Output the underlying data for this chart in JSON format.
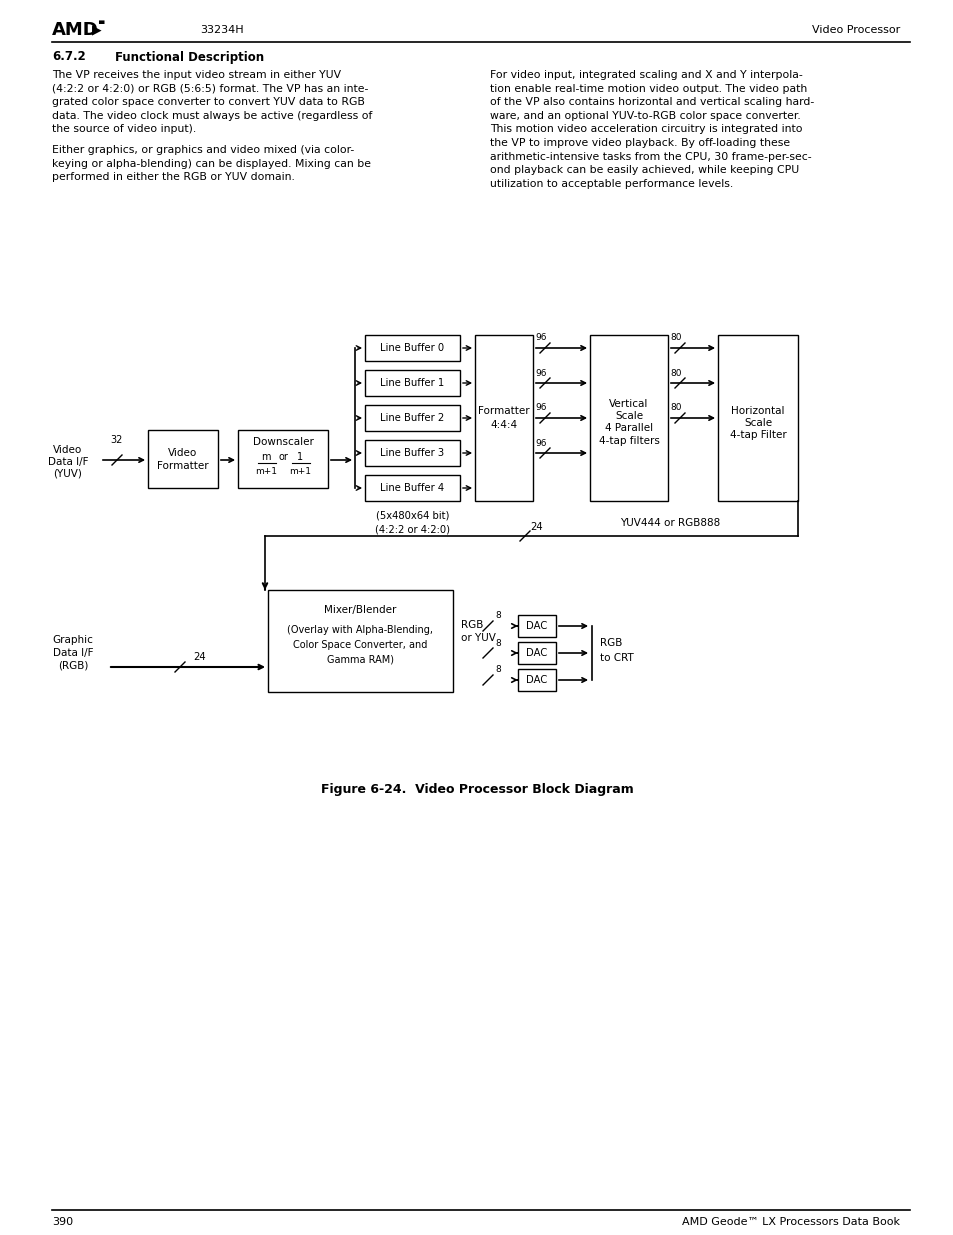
{
  "title_num": "6.7.2",
  "title_text": "Functional Description",
  "header_doc": "33234H",
  "header_section": "Video Processor",
  "footer_page": "390",
  "footer_doc": "AMD Geode™ LX Processors Data Book",
  "para1": "The VP receives the input video stream in either YUV\n(4:2:2 or 4:2:0) or RGB (5:6:5) format. The VP has an inte-\ngrated color space converter to convert YUV data to RGB\ndata. The video clock must always be active (regardless of\nthe source of video input).",
  "para2": "Either graphics, or graphics and video mixed (via color-\nkeying or alpha-blending) can be displayed. Mixing can be\nperformed in either the RGB or YUV domain.",
  "para_right": "For video input, integrated scaling and X and Y interpola-\ntion enable real-time motion video output. The video path\nof the VP also contains horizontal and vertical scaling hard-\nware, and an optional YUV-to-RGB color space converter.\nThis motion video acceleration circuitry is integrated into\nthe VP to improve video playback. By off-loading these\narithmetic-intensive tasks from the CPU, 30 frame-per-sec-\nond playback can be easily achieved, while keeping CPU\nutilization to acceptable performance levels.",
  "figure_caption": "Figure 6-24.  Video Processor Block Diagram"
}
